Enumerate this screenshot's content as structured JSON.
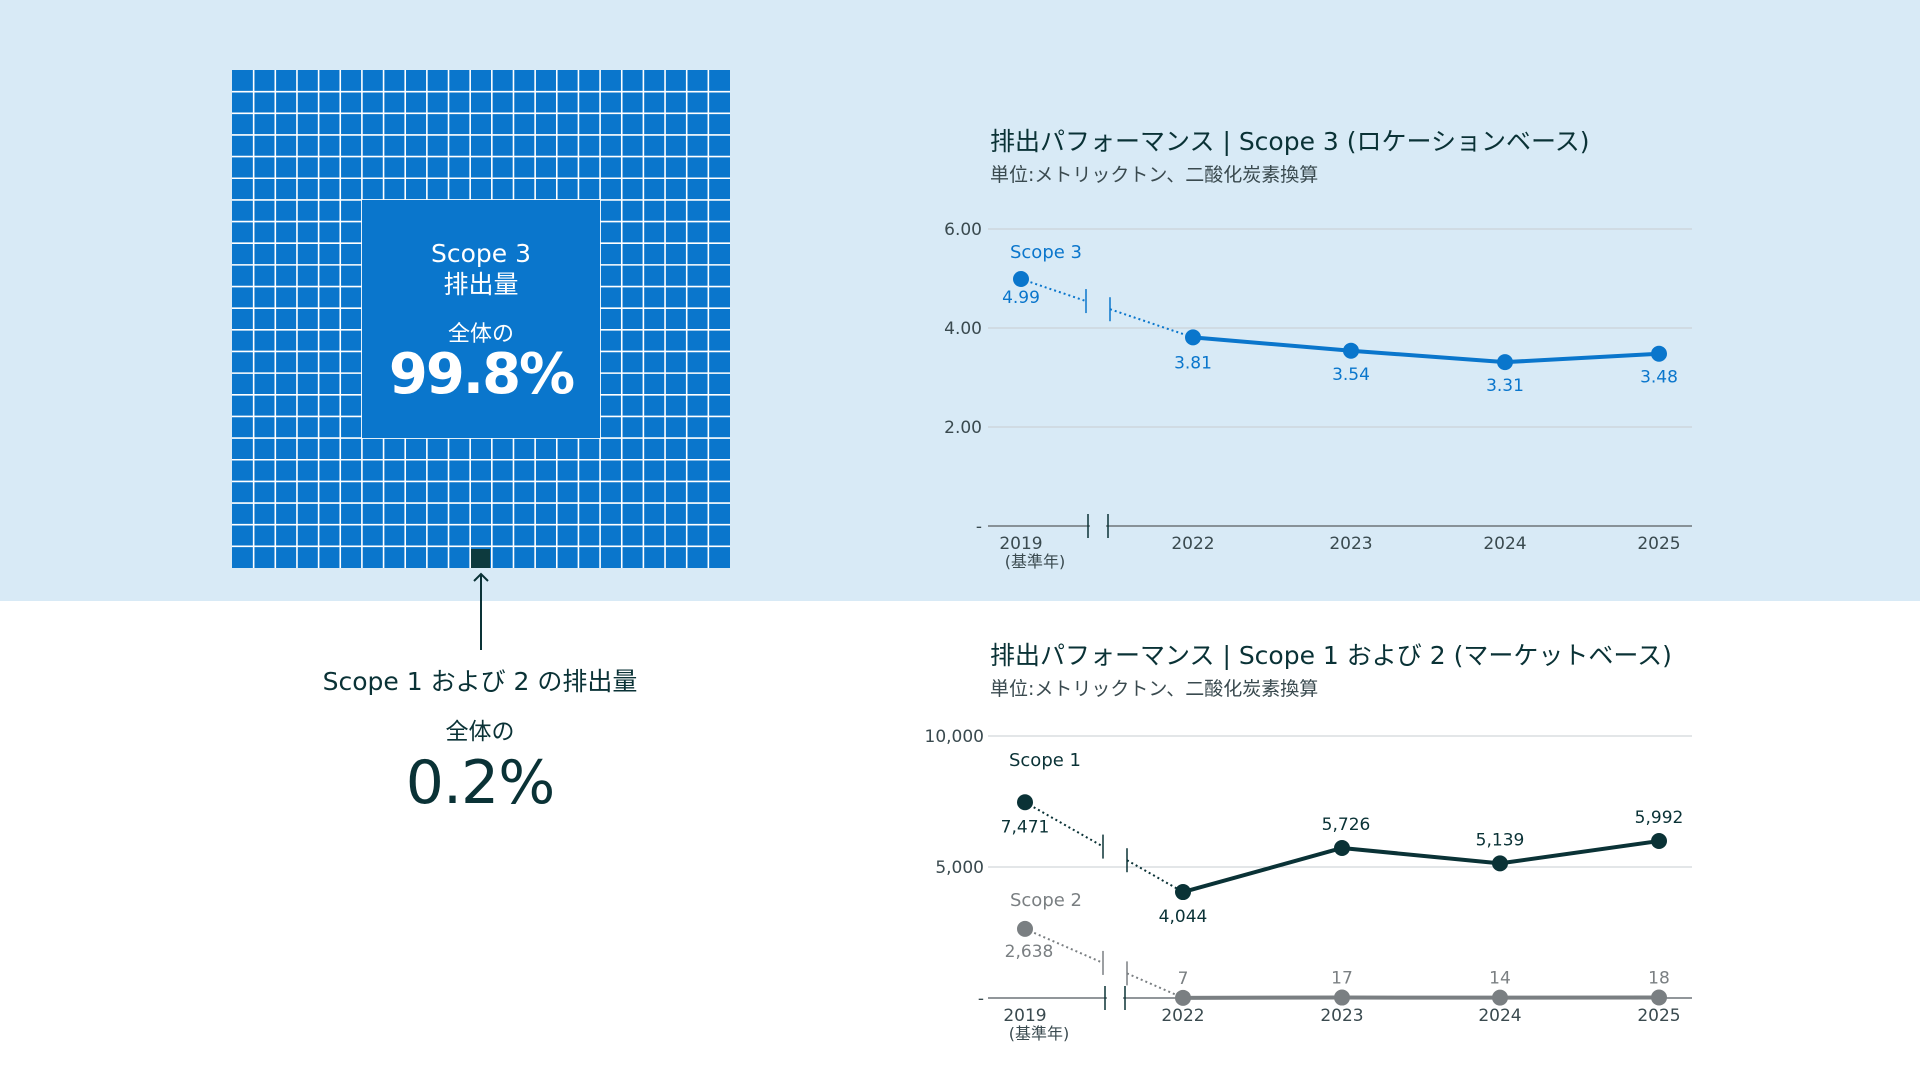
{
  "waffle": {
    "scope3_label_line1": "Scope 3",
    "scope3_label_line2": "排出量",
    "scope3_share_prefix": "全体の",
    "scope3_share_value": "99.8%",
    "scope12_label": "Scope 1 および 2 の排出量",
    "scope12_share_prefix": "全体の",
    "scope12_share_value": "0.2%",
    "grid_color": "#0a76cc",
    "highlight_color": "#0d3a3e"
  },
  "chart_data": [
    {
      "type": "line",
      "title": "排出パフォーマンス | Scope 3 (ロケーションベース)",
      "subtitle": "単位:メトリックトン、二酸化炭素換算",
      "categories": [
        "2019",
        "2022",
        "2023",
        "2024",
        "2025"
      ],
      "base_year_note": "(基準年)",
      "y_ticks": [
        "6.00",
        "4.00",
        "2.00",
        "-"
      ],
      "ylim": [
        0,
        6
      ],
      "series": [
        {
          "name": "Scope 3",
          "values": [
            4.99,
            3.81,
            3.54,
            3.31,
            3.48
          ],
          "labels": [
            "4.99",
            "3.81",
            "3.54",
            "3.31",
            "3.48"
          ],
          "color": "#0a76cc"
        }
      ]
    },
    {
      "type": "line",
      "title": "排出パフォーマンス | Scope 1 および 2 (マーケットベース)",
      "subtitle": "単位:メトリックトン、二酸化炭素換算",
      "categories": [
        "2019",
        "2022",
        "2023",
        "2024",
        "2025"
      ],
      "base_year_note": "(基準年)",
      "y_ticks": [
        "10,000",
        "5,000",
        "-"
      ],
      "ylim": [
        0,
        10000
      ],
      "series": [
        {
          "name": "Scope 1",
          "values": [
            7471,
            4044,
            5726,
            5139,
            5992
          ],
          "labels": [
            "7,471",
            "4,044",
            "5,726",
            "5,139",
            "5,992"
          ],
          "color": "#0a3236"
        },
        {
          "name": "Scope 2",
          "values": [
            2638,
            7,
            17,
            14,
            18
          ],
          "labels": [
            "2,638",
            "7",
            "17",
            "14",
            "18"
          ],
          "color": "#7a7f82"
        }
      ]
    }
  ]
}
